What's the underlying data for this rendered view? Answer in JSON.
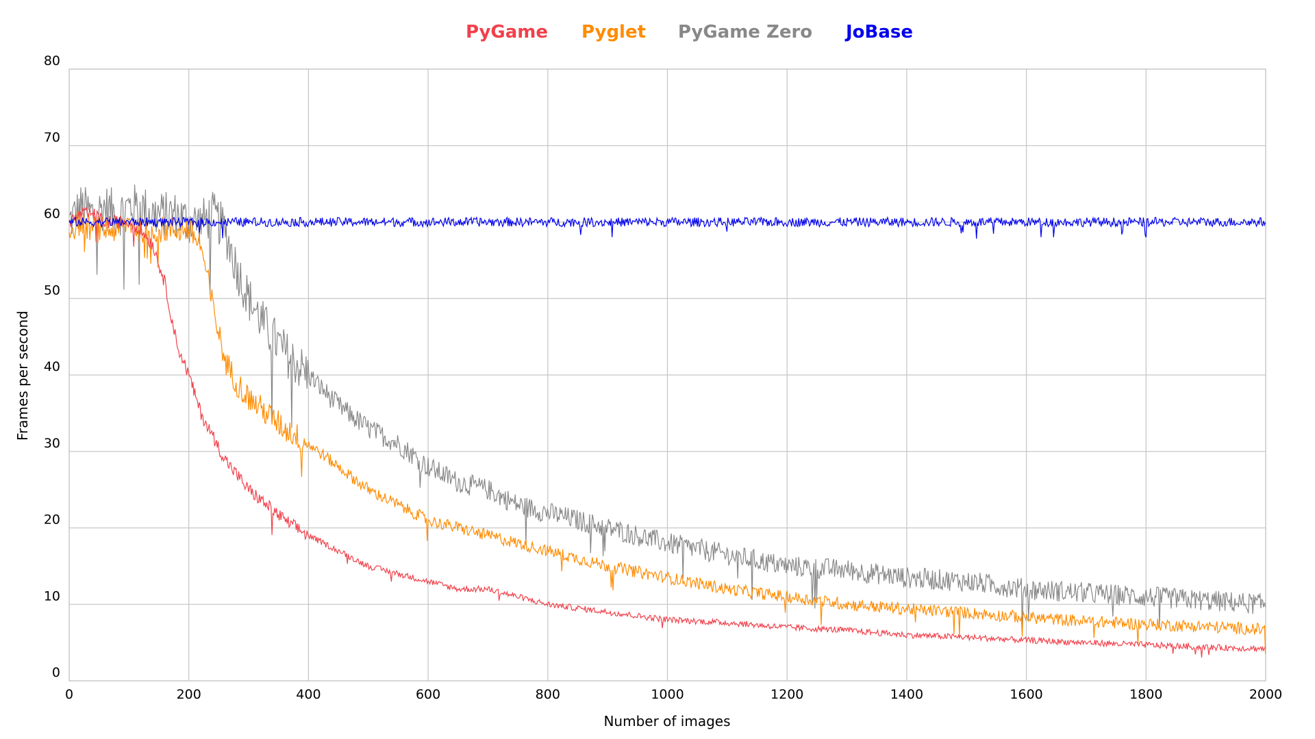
{
  "chart_data": {
    "type": "line",
    "title": "",
    "xlabel": "Number of images",
    "ylabel": "Frames per second",
    "xlim": [
      0,
      2000
    ],
    "ylim": [
      0,
      80
    ],
    "x_ticks": [
      0,
      200,
      400,
      600,
      800,
      1000,
      1200,
      1400,
      1600,
      1800,
      2000
    ],
    "y_ticks": [
      0,
      10,
      20,
      30,
      40,
      50,
      60,
      70,
      80
    ],
    "grid": true,
    "legend_position": "top-center",
    "x": [
      0,
      20,
      40,
      60,
      80,
      100,
      120,
      140,
      160,
      180,
      200,
      220,
      240,
      260,
      280,
      300,
      330,
      360,
      400,
      450,
      500,
      550,
      600,
      650,
      700,
      750,
      800,
      900,
      1000,
      1100,
      1200,
      1300,
      1400,
      1500,
      1600,
      1700,
      1800,
      1900,
      2000
    ],
    "series": [
      {
        "name": "PyGame",
        "color": "#f0414b",
        "values": [
          60,
          61,
          61,
          60,
          60,
          60,
          59,
          57,
          52,
          44,
          40,
          35,
          32,
          29,
          27,
          25,
          23,
          21,
          19,
          17,
          15,
          14,
          13,
          12,
          12,
          11,
          10,
          9,
          8,
          7.6,
          7,
          6.6,
          6,
          5.7,
          5.3,
          5,
          4.7,
          4.4,
          4.2
        ]
      },
      {
        "name": "Pyglet",
        "color": "#ff8c00",
        "values": [
          59,
          60,
          59,
          59,
          59,
          60,
          59,
          59,
          59,
          59,
          59,
          57,
          49,
          42,
          39,
          37,
          35,
          33,
          31,
          28,
          25,
          23,
          21,
          20,
          19,
          18,
          17,
          15,
          13.5,
          12,
          11,
          10,
          9.4,
          8.9,
          8.3,
          7.8,
          7.4,
          7.1,
          6.7
        ]
      },
      {
        "name": "PyGame Zero",
        "color": "#888888",
        "values": [
          60,
          62,
          61,
          62,
          61,
          62,
          62,
          61,
          61,
          61,
          60,
          60,
          61,
          59,
          54,
          50,
          46,
          43,
          40,
          36,
          33,
          31,
          28,
          26,
          25,
          23,
          22,
          20,
          18,
          16.5,
          15,
          14.5,
          13.5,
          13,
          12,
          11.5,
          11,
          10.5,
          10
        ]
      },
      {
        "name": "JoBase",
        "color": "#0000ee",
        "values": [
          60,
          60,
          60,
          60,
          60,
          60,
          60,
          60,
          60,
          60,
          60,
          60,
          60,
          60,
          60,
          60,
          60,
          60,
          60,
          60,
          60,
          60,
          60,
          60,
          60,
          60,
          60,
          60,
          60,
          60,
          60,
          60,
          60,
          60,
          60,
          60,
          60,
          60,
          60
        ]
      }
    ]
  }
}
